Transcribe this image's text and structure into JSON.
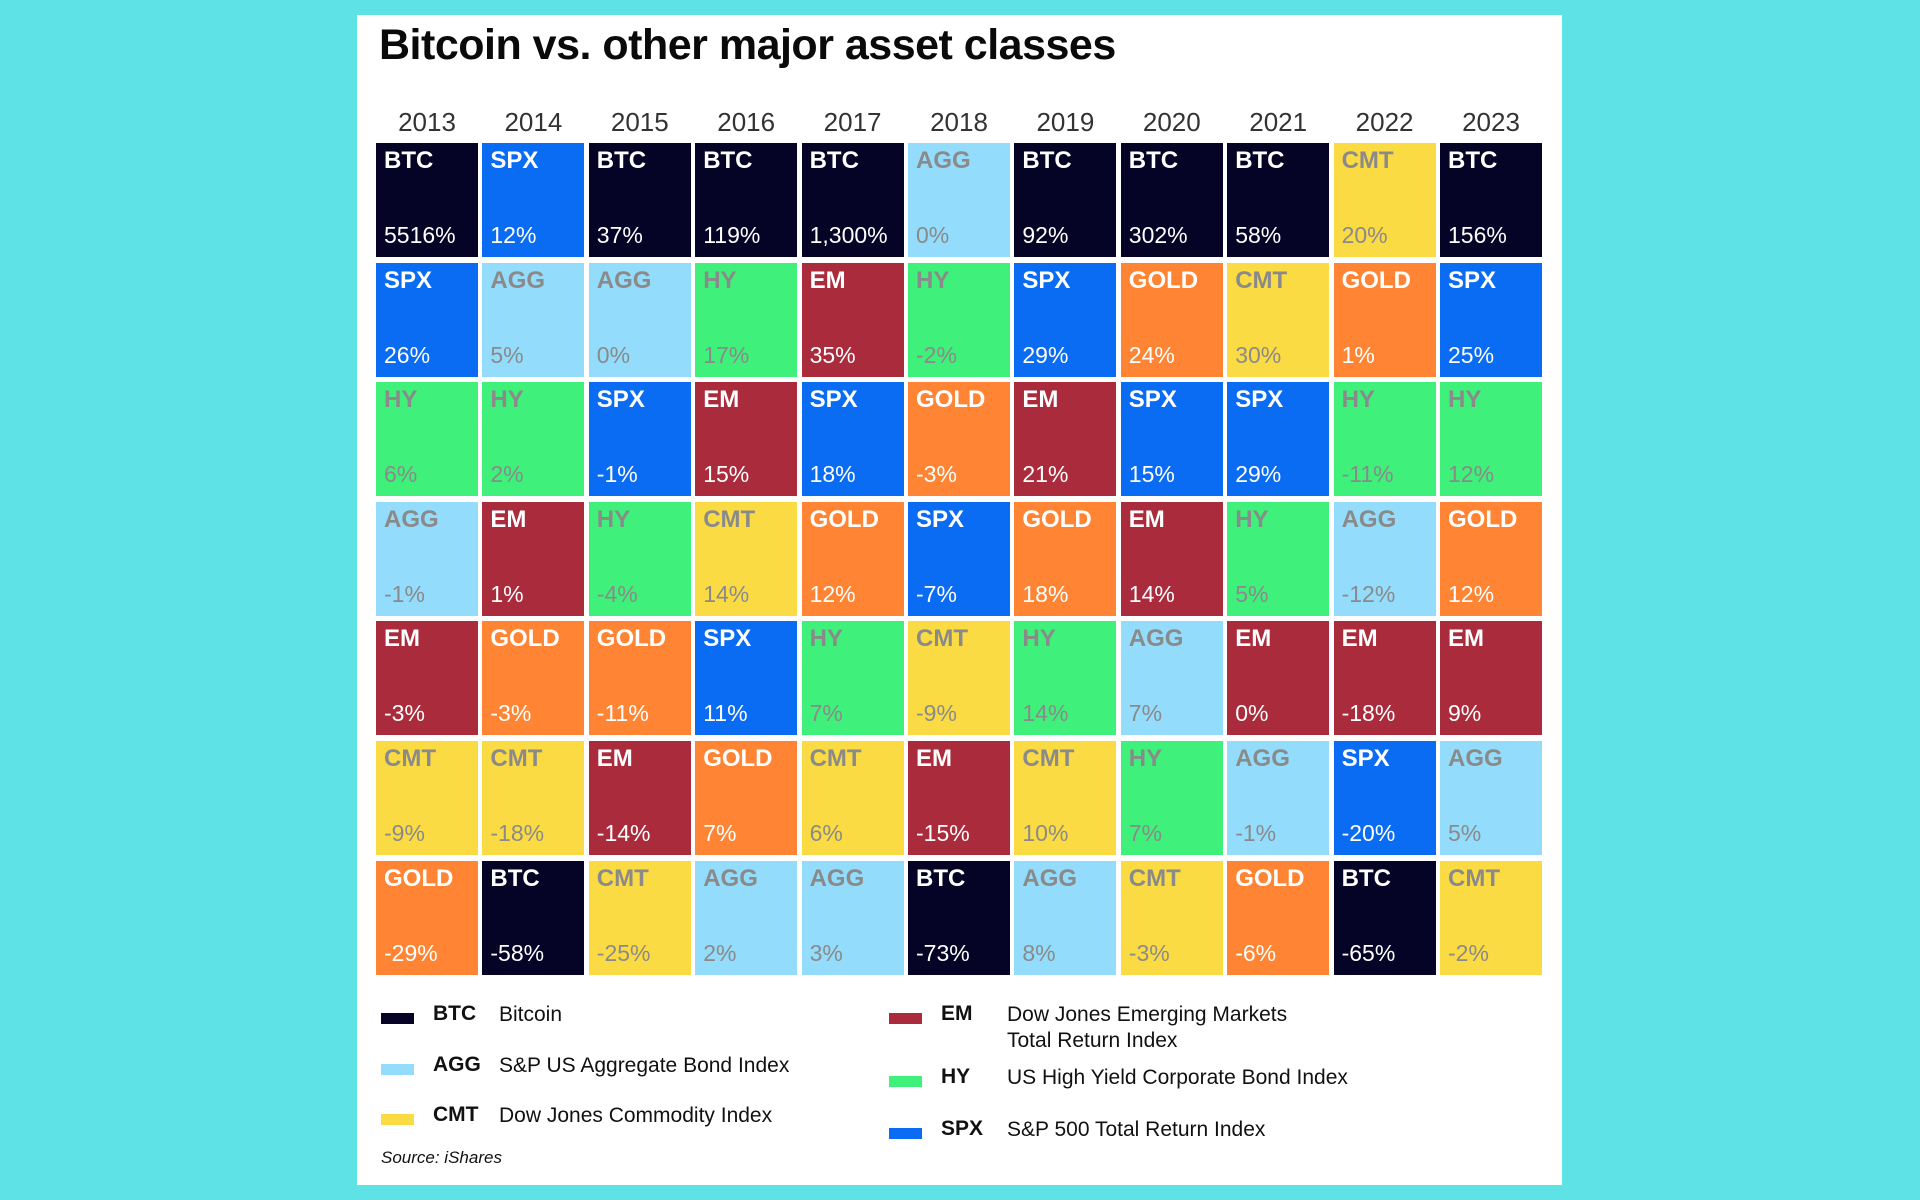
{
  "chart_data": {
    "type": "table",
    "title": "Bitcoin vs. other major asset classes",
    "years": [
      "2013",
      "2014",
      "2015",
      "2016",
      "2017",
      "2018",
      "2019",
      "2020",
      "2021",
      "2022",
      "2023"
    ],
    "columns": [
      [
        {
          "code": "BTC",
          "value": "5516%"
        },
        {
          "code": "SPX",
          "value": "26%"
        },
        {
          "code": "HY",
          "value": "6%"
        },
        {
          "code": "AGG",
          "value": "-1%"
        },
        {
          "code": "EM",
          "value": "-3%"
        },
        {
          "code": "CMT",
          "value": "-9%"
        },
        {
          "code": "GOLD",
          "value": "-29%"
        }
      ],
      [
        {
          "code": "SPX",
          "value": "12%"
        },
        {
          "code": "AGG",
          "value": "5%"
        },
        {
          "code": "HY",
          "value": "2%"
        },
        {
          "code": "EM",
          "value": "1%"
        },
        {
          "code": "GOLD",
          "value": "-3%"
        },
        {
          "code": "CMT",
          "value": "-18%"
        },
        {
          "code": "BTC",
          "value": "-58%"
        }
      ],
      [
        {
          "code": "BTC",
          "value": "37%"
        },
        {
          "code": "AGG",
          "value": "0%"
        },
        {
          "code": "SPX",
          "value": "-1%"
        },
        {
          "code": "HY",
          "value": "-4%"
        },
        {
          "code": "GOLD",
          "value": "-11%"
        },
        {
          "code": "EM",
          "value": "-14%"
        },
        {
          "code": "CMT",
          "value": "-25%"
        }
      ],
      [
        {
          "code": "BTC",
          "value": "119%"
        },
        {
          "code": "HY",
          "value": "17%"
        },
        {
          "code": "EM",
          "value": "15%"
        },
        {
          "code": "CMT",
          "value": "14%"
        },
        {
          "code": "SPX",
          "value": "11%"
        },
        {
          "code": "GOLD",
          "value": "7%"
        },
        {
          "code": "AGG",
          "value": "2%"
        }
      ],
      [
        {
          "code": "BTC",
          "value": "1,300%"
        },
        {
          "code": "EM",
          "value": "35%"
        },
        {
          "code": "SPX",
          "value": "18%"
        },
        {
          "code": "GOLD",
          "value": "12%"
        },
        {
          "code": "HY",
          "value": "7%"
        },
        {
          "code": "CMT",
          "value": "6%"
        },
        {
          "code": "AGG",
          "value": "3%"
        }
      ],
      [
        {
          "code": "AGG",
          "value": "0%"
        },
        {
          "code": "HY",
          "value": "-2%"
        },
        {
          "code": "GOLD",
          "value": "-3%"
        },
        {
          "code": "SPX",
          "value": "-7%"
        },
        {
          "code": "CMT",
          "value": "-9%"
        },
        {
          "code": "EM",
          "value": "-15%"
        },
        {
          "code": "BTC",
          "value": "-73%"
        }
      ],
      [
        {
          "code": "BTC",
          "value": "92%"
        },
        {
          "code": "SPX",
          "value": "29%"
        },
        {
          "code": "EM",
          "value": "21%"
        },
        {
          "code": "GOLD",
          "value": "18%"
        },
        {
          "code": "HY",
          "value": "14%"
        },
        {
          "code": "CMT",
          "value": "10%"
        },
        {
          "code": "AGG",
          "value": "8%"
        }
      ],
      [
        {
          "code": "BTC",
          "value": "302%"
        },
        {
          "code": "GOLD",
          "value": "24%"
        },
        {
          "code": "SPX",
          "value": "15%"
        },
        {
          "code": "EM",
          "value": "14%"
        },
        {
          "code": "AGG",
          "value": "7%"
        },
        {
          "code": "HY",
          "value": "7%"
        },
        {
          "code": "CMT",
          "value": "-3%"
        }
      ],
      [
        {
          "code": "BTC",
          "value": "58%"
        },
        {
          "code": "CMT",
          "value": "30%"
        },
        {
          "code": "SPX",
          "value": "29%"
        },
        {
          "code": "HY",
          "value": "5%"
        },
        {
          "code": "EM",
          "value": "0%"
        },
        {
          "code": "AGG",
          "value": "-1%"
        },
        {
          "code": "GOLD",
          "value": "-6%"
        }
      ],
      [
        {
          "code": "CMT",
          "value": "20%"
        },
        {
          "code": "GOLD",
          "value": "1%"
        },
        {
          "code": "HY",
          "value": "-11%"
        },
        {
          "code": "AGG",
          "value": "-12%"
        },
        {
          "code": "EM",
          "value": "-18%"
        },
        {
          "code": "SPX",
          "value": "-20%"
        },
        {
          "code": "BTC",
          "value": "-65%"
        }
      ],
      [
        {
          "code": "BTC",
          "value": "156%"
        },
        {
          "code": "SPX",
          "value": "25%"
        },
        {
          "code": "HY",
          "value": "12%"
        },
        {
          "code": "GOLD",
          "value": "12%"
        },
        {
          "code": "EM",
          "value": "9%"
        },
        {
          "code": "AGG",
          "value": "5%"
        },
        {
          "code": "CMT",
          "value": "-2%"
        }
      ]
    ],
    "asset_colors": {
      "BTC": {
        "bg": "#050426",
        "text": "#ffffff"
      },
      "SPX": {
        "bg": "#0a6cf2",
        "text": "#ffffff"
      },
      "EM": {
        "bg": "#a92b3c",
        "text": "#ffffff"
      },
      "GOLD": {
        "bg": "#ff8534",
        "text": "#ffffff"
      },
      "AGG": {
        "bg": "#93dcfb",
        "text": "#8a8a8a"
      },
      "HY": {
        "bg": "#3ff07a",
        "text": "#8a8a8a"
      },
      "CMT": {
        "bg": "#fbdb44",
        "text": "#8a8a8a"
      }
    },
    "legend": [
      {
        "code": "BTC",
        "name": "Bitcoin",
        "color": "#050426"
      },
      {
        "code": "AGG",
        "name": "S&P US Aggregate Bond Index",
        "color": "#93dcfb"
      },
      {
        "code": "CMT",
        "name": "Dow Jones Commodity Index",
        "color": "#fbdb44"
      },
      {
        "code": "EM",
        "name": "Dow Jones Emerging Markets\nTotal Return Index",
        "color": "#a92b3c"
      },
      {
        "code": "HY",
        "name": "US High Yield Corporate Bond Index",
        "color": "#3ff07a"
      },
      {
        "code": "SPX",
        "name": "S&P 500 Total Return Index",
        "color": "#0a6cf2"
      }
    ],
    "source": "Source: iShares"
  }
}
